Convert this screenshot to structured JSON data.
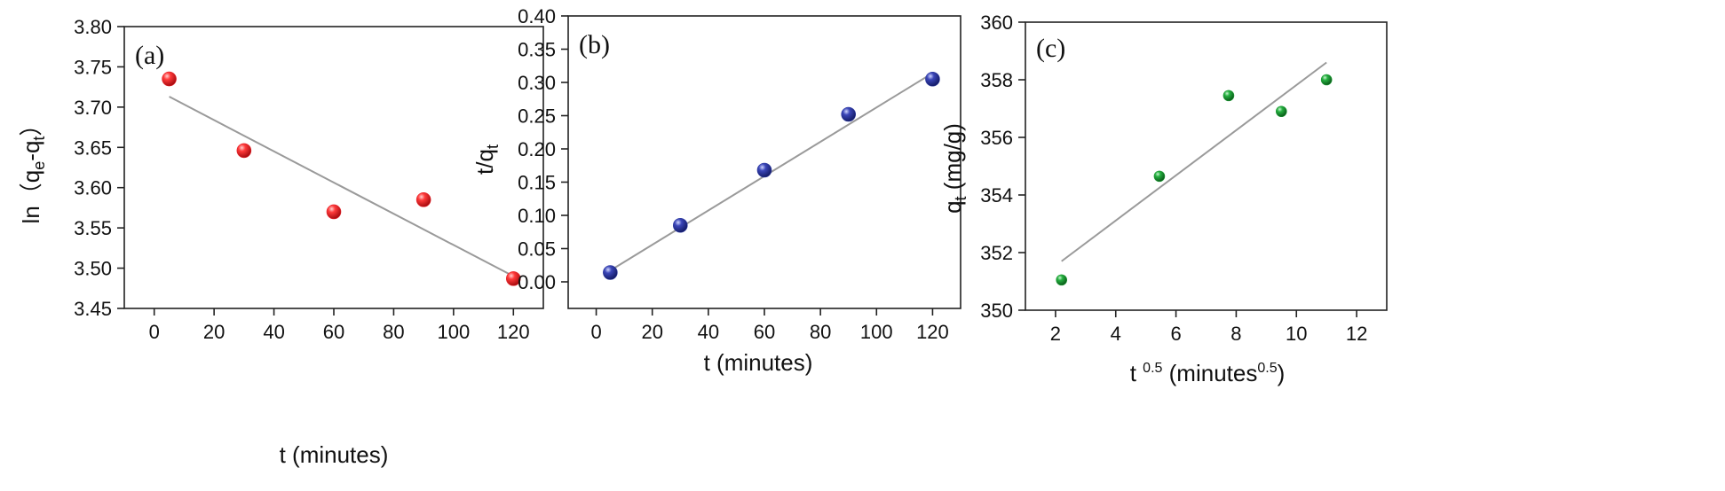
{
  "chart_data": [
    {
      "type": "scatter",
      "panel": "(a)",
      "xlabel": "t  (minutes)",
      "ylabel": "ln（qe-qt）",
      "xlim": [
        -10,
        130
      ],
      "ylim": [
        3.45,
        3.8
      ],
      "xticks": [
        0,
        20,
        40,
        60,
        80,
        100,
        120
      ],
      "yticks": [
        3.45,
        3.5,
        3.55,
        3.6,
        3.65,
        3.7,
        3.75,
        3.8
      ],
      "ytick_decimals": 2,
      "points": [
        {
          "x": 5,
          "y": 3.735
        },
        {
          "x": 30,
          "y": 3.646
        },
        {
          "x": 60,
          "y": 3.57
        },
        {
          "x": 90,
          "y": 3.585
        },
        {
          "x": 120,
          "y": 3.487
        }
      ],
      "fit": [
        {
          "x": 5,
          "y": 3.713
        },
        {
          "x": 120,
          "y": 3.49
        }
      ],
      "marker_color": "#e8242b",
      "grid": false
    },
    {
      "type": "scatter",
      "panel": "(b)",
      "xlabel": "t (minutes)",
      "ylabel": "t/qt",
      "xlim": [
        -10,
        130
      ],
      "ylim": [
        -0.04,
        0.4
      ],
      "xticks": [
        0,
        20,
        40,
        60,
        80,
        100,
        120
      ],
      "yticks": [
        0.0,
        0.05,
        0.1,
        0.15,
        0.2,
        0.25,
        0.3,
        0.35,
        0.4
      ],
      "ytick_decimals": 2,
      "points": [
        {
          "x": 5,
          "y": 0.014
        },
        {
          "x": 30,
          "y": 0.085
        },
        {
          "x": 60,
          "y": 0.168
        },
        {
          "x": 90,
          "y": 0.252
        },
        {
          "x": 120,
          "y": 0.305
        }
      ],
      "fit": [
        {
          "x": 5,
          "y": 0.017
        },
        {
          "x": 120,
          "y": 0.314
        }
      ],
      "marker_color": "#2e3aa0",
      "grid": false
    },
    {
      "type": "scatter",
      "panel": "(c)",
      "xlabel": "t 0.5 (minutes0.5)",
      "ylabel": "qt (mg/g)",
      "xlim": [
        1,
        13
      ],
      "ylim": [
        350,
        360
      ],
      "xticks": [
        2,
        4,
        6,
        8,
        10,
        12
      ],
      "yticks": [
        350,
        352,
        354,
        356,
        358,
        360
      ],
      "ytick_decimals": 0,
      "points": [
        {
          "x": 2.2,
          "y": 351.05
        },
        {
          "x": 5.45,
          "y": 354.65
        },
        {
          "x": 7.75,
          "y": 357.45
        },
        {
          "x": 9.5,
          "y": 356.9
        },
        {
          "x": 11.0,
          "y": 358.0
        }
      ],
      "fit": [
        {
          "x": 2.2,
          "y": 351.7
        },
        {
          "x": 11.0,
          "y": 358.6
        }
      ],
      "marker_color": "#1e9a35",
      "grid": false
    }
  ]
}
